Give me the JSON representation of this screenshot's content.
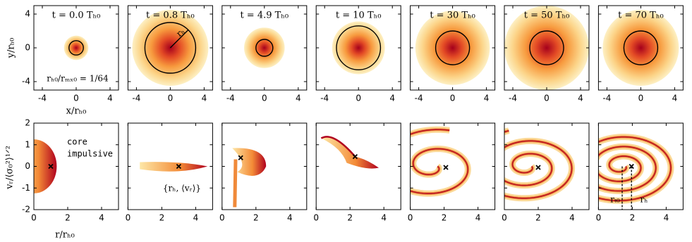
{
  "chart_data": {
    "type": "scatter",
    "top": {
      "xlim": [
        -5,
        5
      ],
      "ylim": [
        -5,
        5
      ],
      "xticks": [
        -4,
        0,
        4
      ],
      "yticks": [
        -4,
        0,
        4
      ],
      "xlabel": "x/rₕ₀",
      "ylabel": "y/rₕ₀"
    },
    "bottom": {
      "xlim": [
        0,
        5
      ],
      "ylim": [
        -2,
        2
      ],
      "xticks": [
        0,
        2,
        4
      ],
      "yticks": [
        -2,
        -1,
        0,
        1,
        2
      ],
      "xlabel": "r/rₕ₀",
      "ylabel": "vᵣ/⟨σ₀²⟩¹ᐟ²"
    },
    "panels": [
      {
        "title": "t = 0.0 Tₕ₀",
        "r_h": 0.85,
        "marker": [
          1,
          0
        ]
      },
      {
        "title": "t = 0.8 Tₕ₀",
        "r_h": 3.0,
        "marker": [
          3,
          0
        ]
      },
      {
        "title": "t = 4.9 Tₕ₀",
        "r_h": 1.0,
        "marker": [
          1.1,
          0.4
        ]
      },
      {
        "title": "t = 10 Tₕ₀",
        "r_h": 2.6,
        "marker": [
          2.3,
          0.45
        ]
      },
      {
        "title": "t = 30 Tₕ₀",
        "r_h": 2.0,
        "marker": [
          2.1,
          -0.05
        ]
      },
      {
        "title": "t = 50 Tₕ₀",
        "r_h": 2.0,
        "marker": [
          2.0,
          -0.05
        ]
      },
      {
        "title": "t = 70 Tₕ₀",
        "r_h": 2.0,
        "marker": [
          1.95,
          0
        ],
        "dashed_x": [
          1.4,
          1.95
        ]
      }
    ],
    "annotations": {
      "ratio": "rₕ₀/rₘₓ₀ = 1/64",
      "radius": "rₕ",
      "core": "core",
      "impulsive": "impulsive",
      "pair": "{rₕ, ⟨vᵣ⟩}",
      "rt0": "rₜ₀",
      "rh": "rₕ"
    }
  }
}
